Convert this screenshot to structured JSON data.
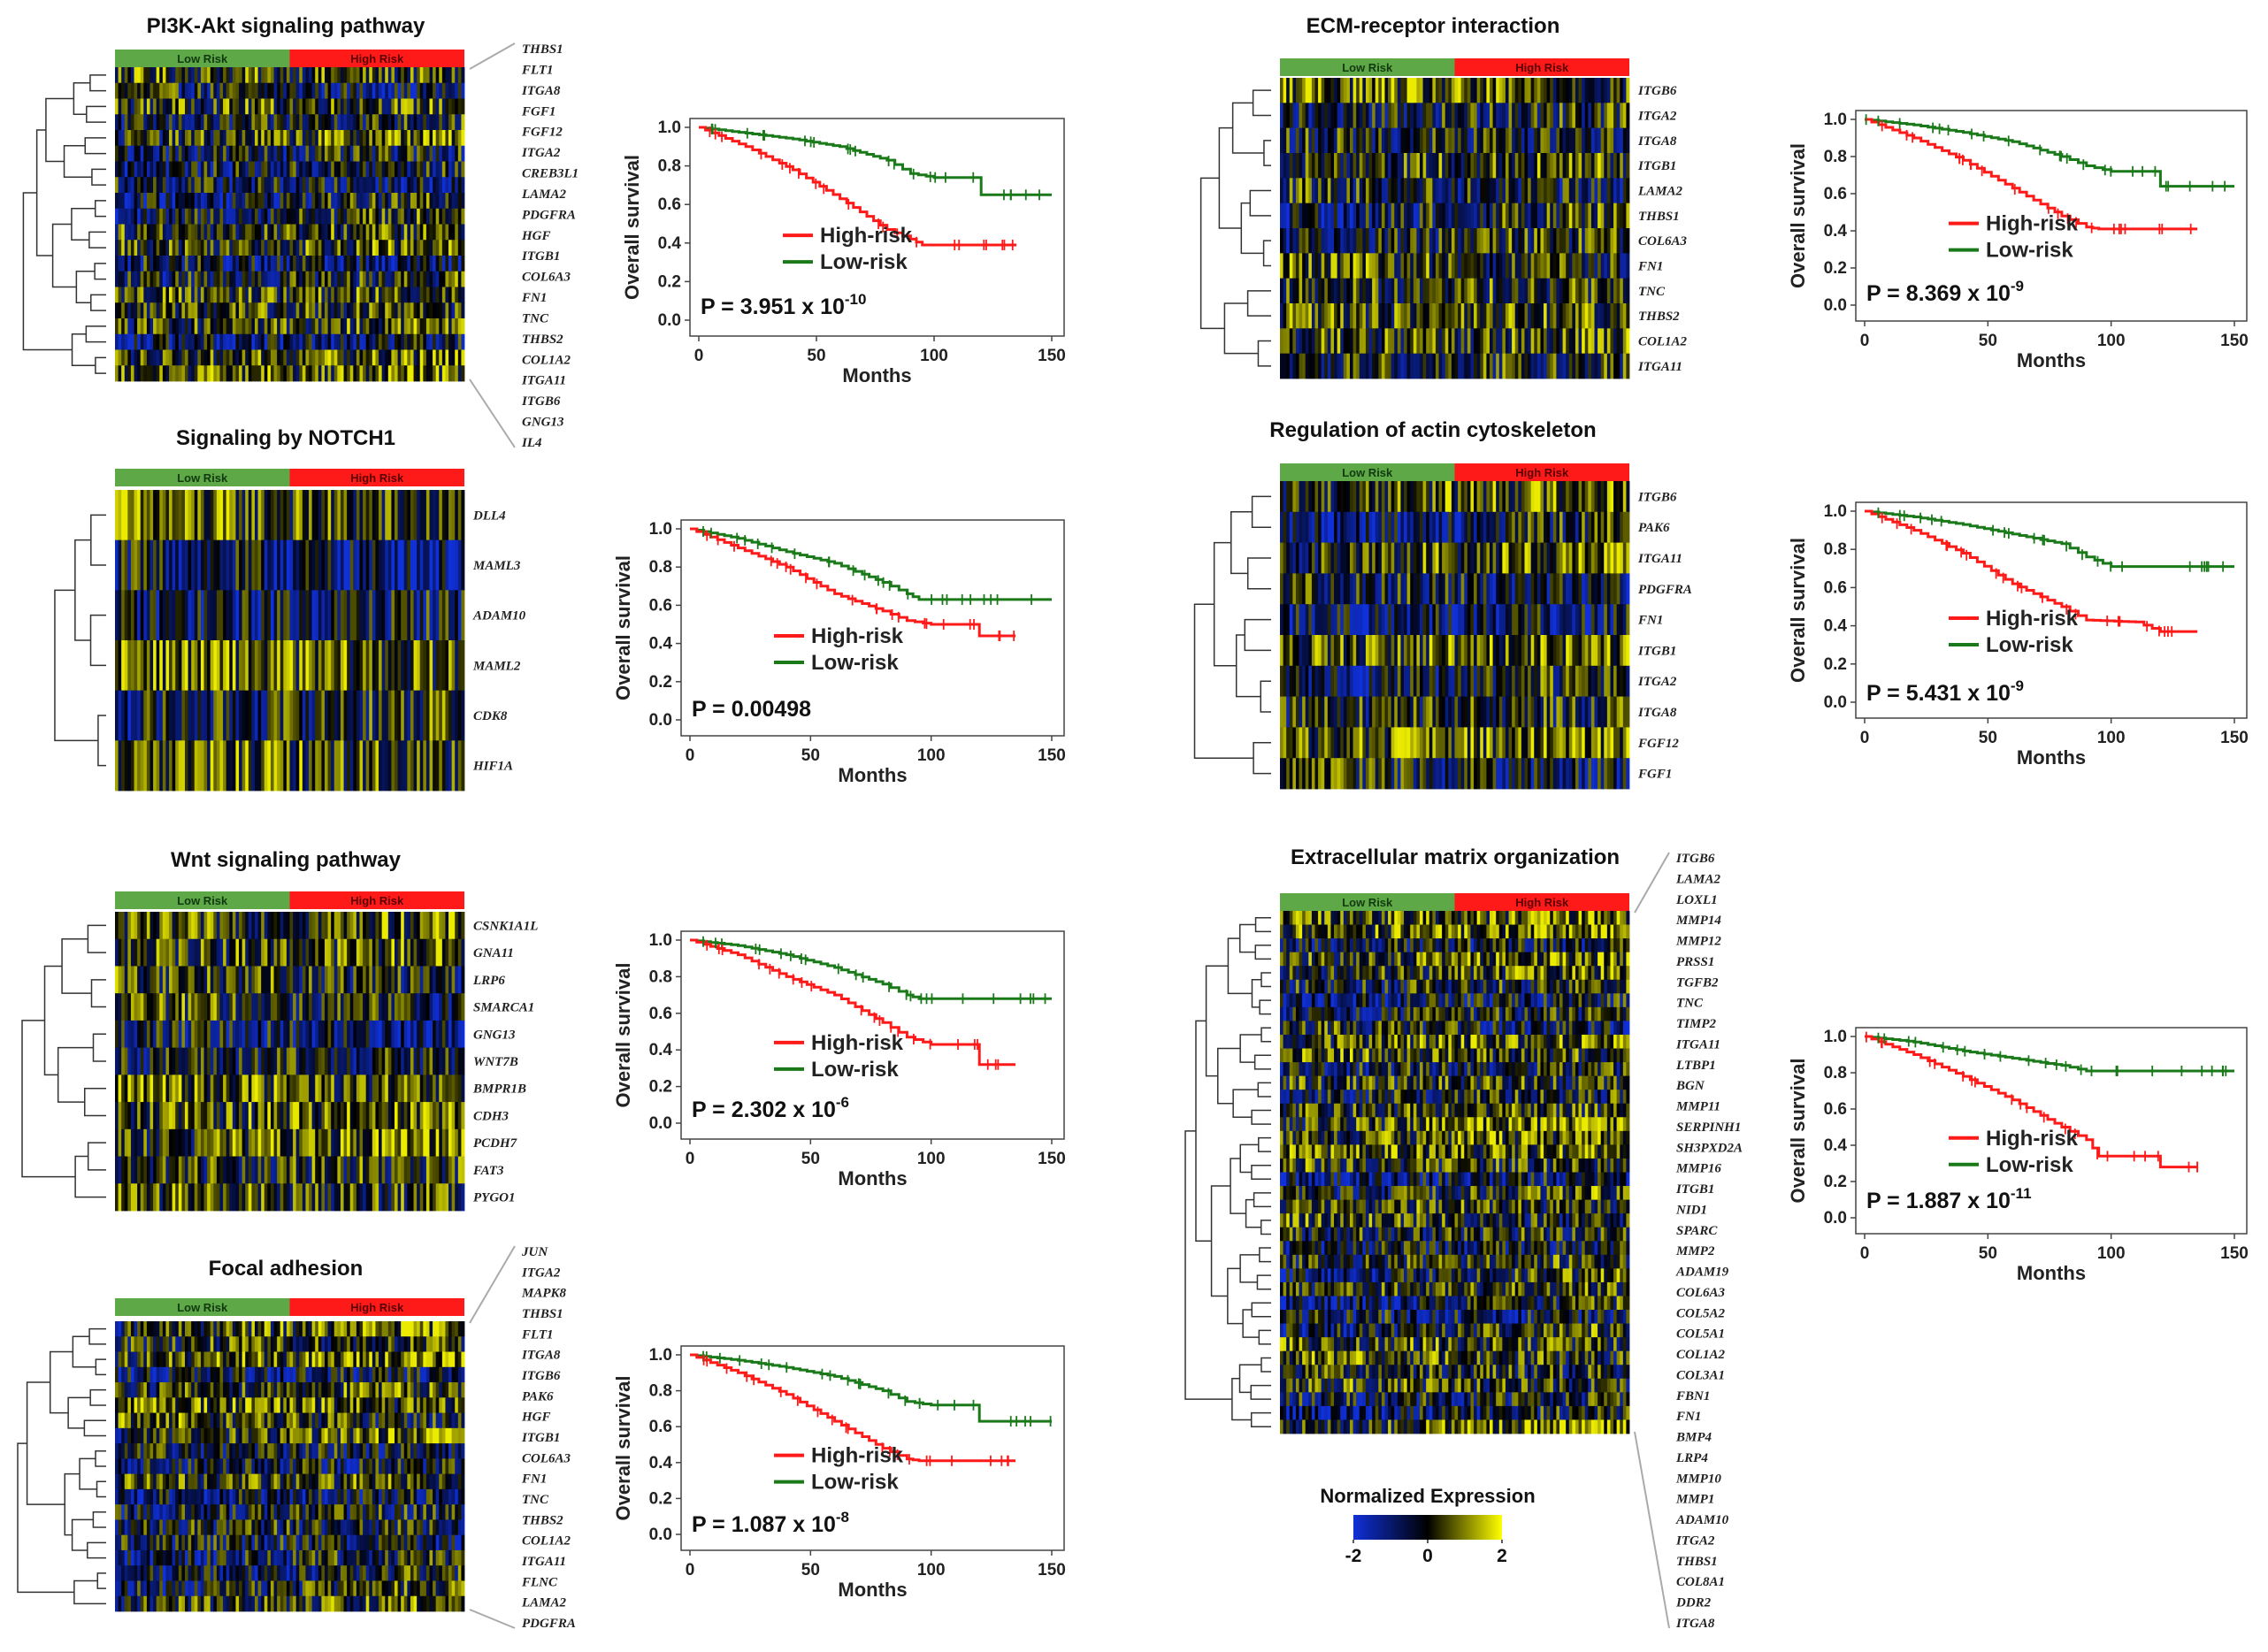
{
  "colors": {
    "low_risk": "#5ea847",
    "high_risk": "#ff1a1a",
    "km_high": "#ff1a1a",
    "km_low": "#1a7a1a",
    "hm_low": "#1030d8",
    "hm_mid": "#000000",
    "hm_high": "#ffff00"
  },
  "common": {
    "low_risk_label": "Low Risk",
    "high_risk_label": "High Risk",
    "ylabel": "Overall survival",
    "xlabel": "Months",
    "legend_high": "High-risk",
    "legend_low": "Low-risk",
    "x_ticks": [
      "0",
      "50",
      "100",
      "150"
    ],
    "y_ticks": [
      "0.0",
      "0.2",
      "0.4",
      "0.6",
      "0.8",
      "1.0"
    ]
  },
  "colorbar": {
    "title": "Normalized Expression",
    "ticks": [
      "-2",
      "0",
      "2"
    ]
  },
  "chart_data": [
    {
      "type": "heatmap+km",
      "title": "PI3K-Akt signaling pathway",
      "genes": [
        "THBS1",
        "FLT1",
        "ITGA8",
        "FGF1",
        "FGF12",
        "ITGA2",
        "CREB3L1",
        "LAMA2",
        "PDGFRA",
        "HGF",
        "ITGB1",
        "COL6A3",
        "FN1",
        "TNC",
        "THBS2",
        "COL1A2",
        "ITGA11",
        "ITGB6",
        "GNG13",
        "IL4"
      ],
      "p_main": "P = 3.951 x 10",
      "p_exp": "-10",
      "km": {
        "xlim": [
          0,
          150
        ],
        "ylim": [
          0,
          1
        ],
        "low": [
          [
            0,
            1.0
          ],
          [
            20,
            0.97
          ],
          [
            40,
            0.94
          ],
          [
            60,
            0.9
          ],
          [
            80,
            0.83
          ],
          [
            90,
            0.76
          ],
          [
            100,
            0.74
          ],
          [
            120,
            0.74
          ],
          [
            120,
            0.65
          ],
          [
            150,
            0.65
          ]
        ],
        "high": [
          [
            0,
            1.0
          ],
          [
            20,
            0.9
          ],
          [
            40,
            0.78
          ],
          [
            60,
            0.63
          ],
          [
            80,
            0.47
          ],
          [
            90,
            0.42
          ],
          [
            95,
            0.39
          ],
          [
            135,
            0.39
          ]
        ]
      }
    },
    {
      "type": "heatmap+km",
      "title": "Signaling by NOTCH1",
      "genes": [
        "DLL4",
        "MAML3",
        "ADAM10",
        "MAML2",
        "CDK8",
        "HIF1A"
      ],
      "p_main": "P = 0.00498",
      "p_exp": "",
      "km": {
        "xlim": [
          0,
          150
        ],
        "ylim": [
          0,
          1
        ],
        "low": [
          [
            0,
            1.0
          ],
          [
            20,
            0.95
          ],
          [
            40,
            0.88
          ],
          [
            60,
            0.82
          ],
          [
            80,
            0.72
          ],
          [
            90,
            0.66
          ],
          [
            95,
            0.63
          ],
          [
            150,
            0.63
          ]
        ],
        "high": [
          [
            0,
            1.0
          ],
          [
            20,
            0.9
          ],
          [
            40,
            0.8
          ],
          [
            60,
            0.66
          ],
          [
            80,
            0.57
          ],
          [
            90,
            0.52
          ],
          [
            100,
            0.5
          ],
          [
            120,
            0.5
          ],
          [
            120,
            0.44
          ],
          [
            135,
            0.44
          ]
        ]
      }
    },
    {
      "type": "heatmap+km",
      "title": "Wnt signaling pathway",
      "genes": [
        "CSNK1A1L",
        "GNA11",
        "LRP6",
        "SMARCA1",
        "GNG13",
        "WNT7B",
        "BMPR1B",
        "CDH3",
        "PCDH7",
        "FAT3",
        "PYGO1"
      ],
      "p_main": "P = 2.302 x 10",
      "p_exp": "-6",
      "km": {
        "xlim": [
          0,
          150
        ],
        "ylim": [
          0,
          1
        ],
        "low": [
          [
            0,
            1.0
          ],
          [
            20,
            0.97
          ],
          [
            40,
            0.92
          ],
          [
            60,
            0.85
          ],
          [
            80,
            0.76
          ],
          [
            90,
            0.7
          ],
          [
            95,
            0.68
          ],
          [
            150,
            0.68
          ]
        ],
        "high": [
          [
            0,
            1.0
          ],
          [
            20,
            0.92
          ],
          [
            40,
            0.8
          ],
          [
            60,
            0.7
          ],
          [
            80,
            0.55
          ],
          [
            90,
            0.47
          ],
          [
            100,
            0.43
          ],
          [
            120,
            0.43
          ],
          [
            120,
            0.32
          ],
          [
            135,
            0.32
          ]
        ]
      }
    },
    {
      "type": "heatmap+km",
      "title": "Focal adhesion",
      "genes": [
        "JUN",
        "ITGA2",
        "MAPK8",
        "THBS1",
        "FLT1",
        "ITGA8",
        "ITGB6",
        "PAK6",
        "HGF",
        "ITGB1",
        "COL6A3",
        "FN1",
        "TNC",
        "THBS2",
        "COL1A2",
        "ITGA11",
        "FLNC",
        "LAMA2",
        "PDGFRA"
      ],
      "p_main": "P = 1.087 x 10",
      "p_exp": "-8",
      "km": {
        "xlim": [
          0,
          150
        ],
        "ylim": [
          0,
          1
        ],
        "low": [
          [
            0,
            1.0
          ],
          [
            20,
            0.97
          ],
          [
            40,
            0.93
          ],
          [
            60,
            0.88
          ],
          [
            80,
            0.8
          ],
          [
            90,
            0.74
          ],
          [
            100,
            0.72
          ],
          [
            120,
            0.72
          ],
          [
            120,
            0.63
          ],
          [
            150,
            0.63
          ]
        ],
        "high": [
          [
            0,
            1.0
          ],
          [
            20,
            0.9
          ],
          [
            40,
            0.78
          ],
          [
            60,
            0.63
          ],
          [
            80,
            0.48
          ],
          [
            90,
            0.42
          ],
          [
            95,
            0.41
          ],
          [
            135,
            0.41
          ]
        ]
      }
    },
    {
      "type": "heatmap+km",
      "title": "ECM-receptor interaction",
      "genes": [
        "ITGB6",
        "ITGA2",
        "ITGA8",
        "ITGB1",
        "LAMA2",
        "THBS1",
        "COL6A3",
        "FN1",
        "TNC",
        "THBS2",
        "COL1A2",
        "ITGA11"
      ],
      "p_main": "P = 8.369 x 10",
      "p_exp": "-9",
      "km": {
        "xlim": [
          0,
          150
        ],
        "ylim": [
          0,
          1
        ],
        "low": [
          [
            0,
            1.0
          ],
          [
            20,
            0.97
          ],
          [
            40,
            0.93
          ],
          [
            60,
            0.88
          ],
          [
            80,
            0.8
          ],
          [
            90,
            0.75
          ],
          [
            100,
            0.72
          ],
          [
            120,
            0.72
          ],
          [
            120,
            0.64
          ],
          [
            150,
            0.64
          ]
        ],
        "high": [
          [
            0,
            1.0
          ],
          [
            20,
            0.9
          ],
          [
            40,
            0.78
          ],
          [
            60,
            0.63
          ],
          [
            80,
            0.48
          ],
          [
            90,
            0.42
          ],
          [
            95,
            0.41
          ],
          [
            135,
            0.41
          ]
        ]
      }
    },
    {
      "type": "heatmap+km",
      "title": "Regulation of actin cytoskeleton",
      "genes": [
        "ITGB6",
        "PAK6",
        "ITGA11",
        "PDGFRA",
        "FN1",
        "ITGB1",
        "ITGA2",
        "ITGA8",
        "FGF12",
        "FGF1"
      ],
      "p_main": "P = 5.431 x 10",
      "p_exp": "-9",
      "km": {
        "xlim": [
          0,
          150
        ],
        "ylim": [
          0,
          1
        ],
        "low": [
          [
            0,
            1.0
          ],
          [
            20,
            0.97
          ],
          [
            40,
            0.93
          ],
          [
            60,
            0.88
          ],
          [
            80,
            0.83
          ],
          [
            90,
            0.76
          ],
          [
            100,
            0.71
          ],
          [
            150,
            0.71
          ]
        ],
        "high": [
          [
            0,
            1.0
          ],
          [
            20,
            0.9
          ],
          [
            40,
            0.78
          ],
          [
            60,
            0.62
          ],
          [
            80,
            0.5
          ],
          [
            90,
            0.43
          ],
          [
            110,
            0.42
          ],
          [
            120,
            0.37
          ],
          [
            135,
            0.37
          ]
        ]
      }
    },
    {
      "type": "heatmap+km",
      "title": "Extracellular matrix organization",
      "genes": [
        "ITGB6",
        "LAMA2",
        "LOXL1",
        "MMP14",
        "MMP12",
        "PRSS1",
        "TGFB2",
        "TNC",
        "TIMP2",
        "ITGA11",
        "LTBP1",
        "BGN",
        "MMP11",
        "SERPINH1",
        "SH3PXD2A",
        "MMP16",
        "ITGB1",
        "NID1",
        "SPARC",
        "MMP2",
        "ADAM19",
        "COL6A3",
        "COL5A2",
        "COL5A1",
        "COL1A2",
        "COL3A1",
        "FBN1",
        "FN1",
        "BMP4",
        "LRP4",
        "MMP10",
        "MMP1",
        "ADAM10",
        "ITGA2",
        "THBS1",
        "COL8A1",
        "DDR2",
        "ITGA8"
      ],
      "p_main": "P = 1.887 x 10",
      "p_exp": "-11",
      "km": {
        "xlim": [
          0,
          150
        ],
        "ylim": [
          0,
          1
        ],
        "low": [
          [
            0,
            1.0
          ],
          [
            20,
            0.97
          ],
          [
            40,
            0.92
          ],
          [
            60,
            0.88
          ],
          [
            80,
            0.84
          ],
          [
            90,
            0.81
          ],
          [
            150,
            0.81
          ]
        ],
        "high": [
          [
            0,
            1.0
          ],
          [
            20,
            0.9
          ],
          [
            40,
            0.78
          ],
          [
            60,
            0.65
          ],
          [
            80,
            0.5
          ],
          [
            90,
            0.43
          ],
          [
            95,
            0.34
          ],
          [
            120,
            0.34
          ],
          [
            120,
            0.28
          ],
          [
            135,
            0.28
          ]
        ]
      }
    }
  ]
}
